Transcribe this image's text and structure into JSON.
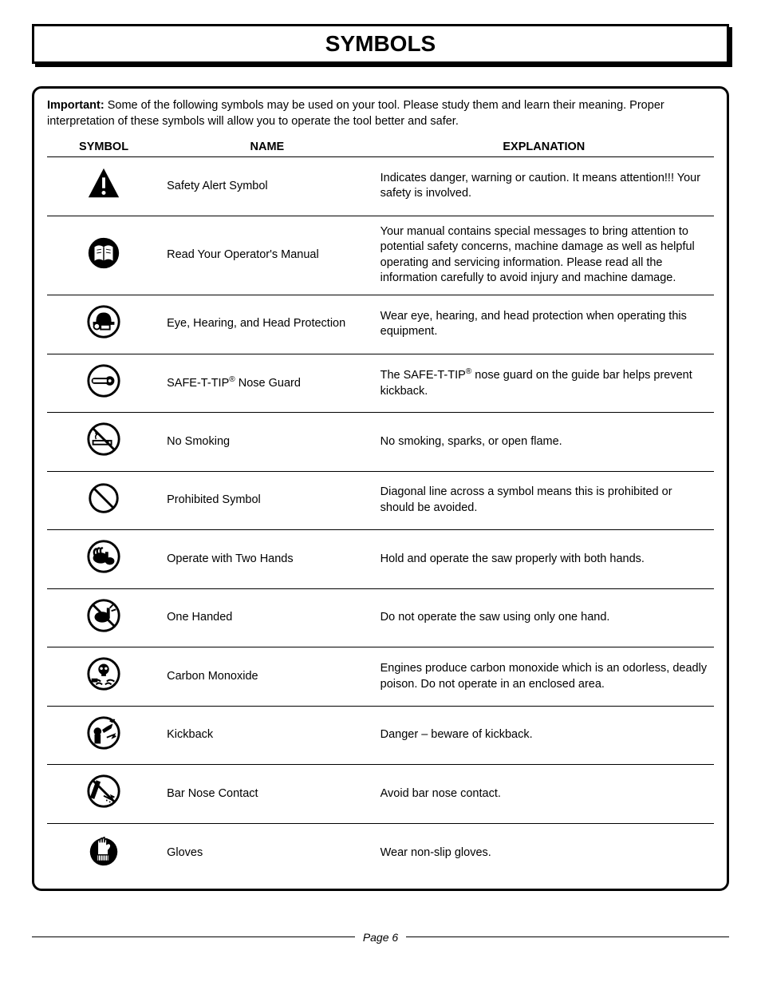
{
  "title": "SYMBOLS",
  "intro_bold": "Important:",
  "intro_rest": " Some of the following symbols may be used on your tool. Please study them and learn their meaning. Proper interpretation of these symbols will allow you to operate the tool better and safer.",
  "headers": {
    "symbol": "SYMBOL",
    "name": "NAME",
    "explanation": "EXPLANATION"
  },
  "rows": [
    {
      "svg": "alert",
      "name": "Safety Alert Symbol",
      "explanation": "Indicates danger, warning or caution. It means attention!!! Your safety is involved."
    },
    {
      "svg": "manual",
      "name": "Read Your Operator's Manual",
      "explanation": "Your manual contains special messages to bring attention to potential safety concerns, machine damage as well as helpful operating and servicing information. Please read all the information carefully to avoid injury and machine damage."
    },
    {
      "svg": "ppe",
      "name": "Eye, Hearing, and Head Protection",
      "explanation": "Wear eye, hearing, and head protection when operating this equipment."
    },
    {
      "svg": "noseguard",
      "name_html": "SAFE-T-TIP<sup>®</sup> Nose Guard",
      "explanation_html": "The SAFE-T-TIP<sup>®</sup> nose guard on the guide bar helps prevent kickback."
    },
    {
      "svg": "nosmoking",
      "name": "No Smoking",
      "explanation": "No smoking, sparks, or open flame."
    },
    {
      "svg": "prohibited",
      "name": "Prohibited Symbol",
      "explanation": "Diagonal line across a symbol means this is prohibited or should be avoided."
    },
    {
      "svg": "twohands",
      "name": "Operate with Two Hands",
      "explanation": "Hold and operate the saw properly with both hands."
    },
    {
      "svg": "onehand",
      "name": "One Handed",
      "explanation": "Do not operate the saw using only one hand."
    },
    {
      "svg": "co",
      "name": "Carbon Monoxide",
      "explanation": "Engines produce carbon monoxide which is an odorless, deadly poison. Do not operate in an enclosed area."
    },
    {
      "svg": "kickback",
      "name": "Kickback",
      "explanation": "Danger – beware of kickback."
    },
    {
      "svg": "barnose",
      "name": "Bar Nose Contact",
      "explanation": "Avoid bar nose contact."
    },
    {
      "svg": "gloves",
      "name": "Gloves",
      "explanation": "Wear non-slip gloves."
    }
  ],
  "page_label": "Page 6",
  "colors": {
    "text": "#000000",
    "bg": "#ffffff"
  },
  "typography": {
    "body_fontsize": 14.5,
    "title_fontsize": 28
  }
}
